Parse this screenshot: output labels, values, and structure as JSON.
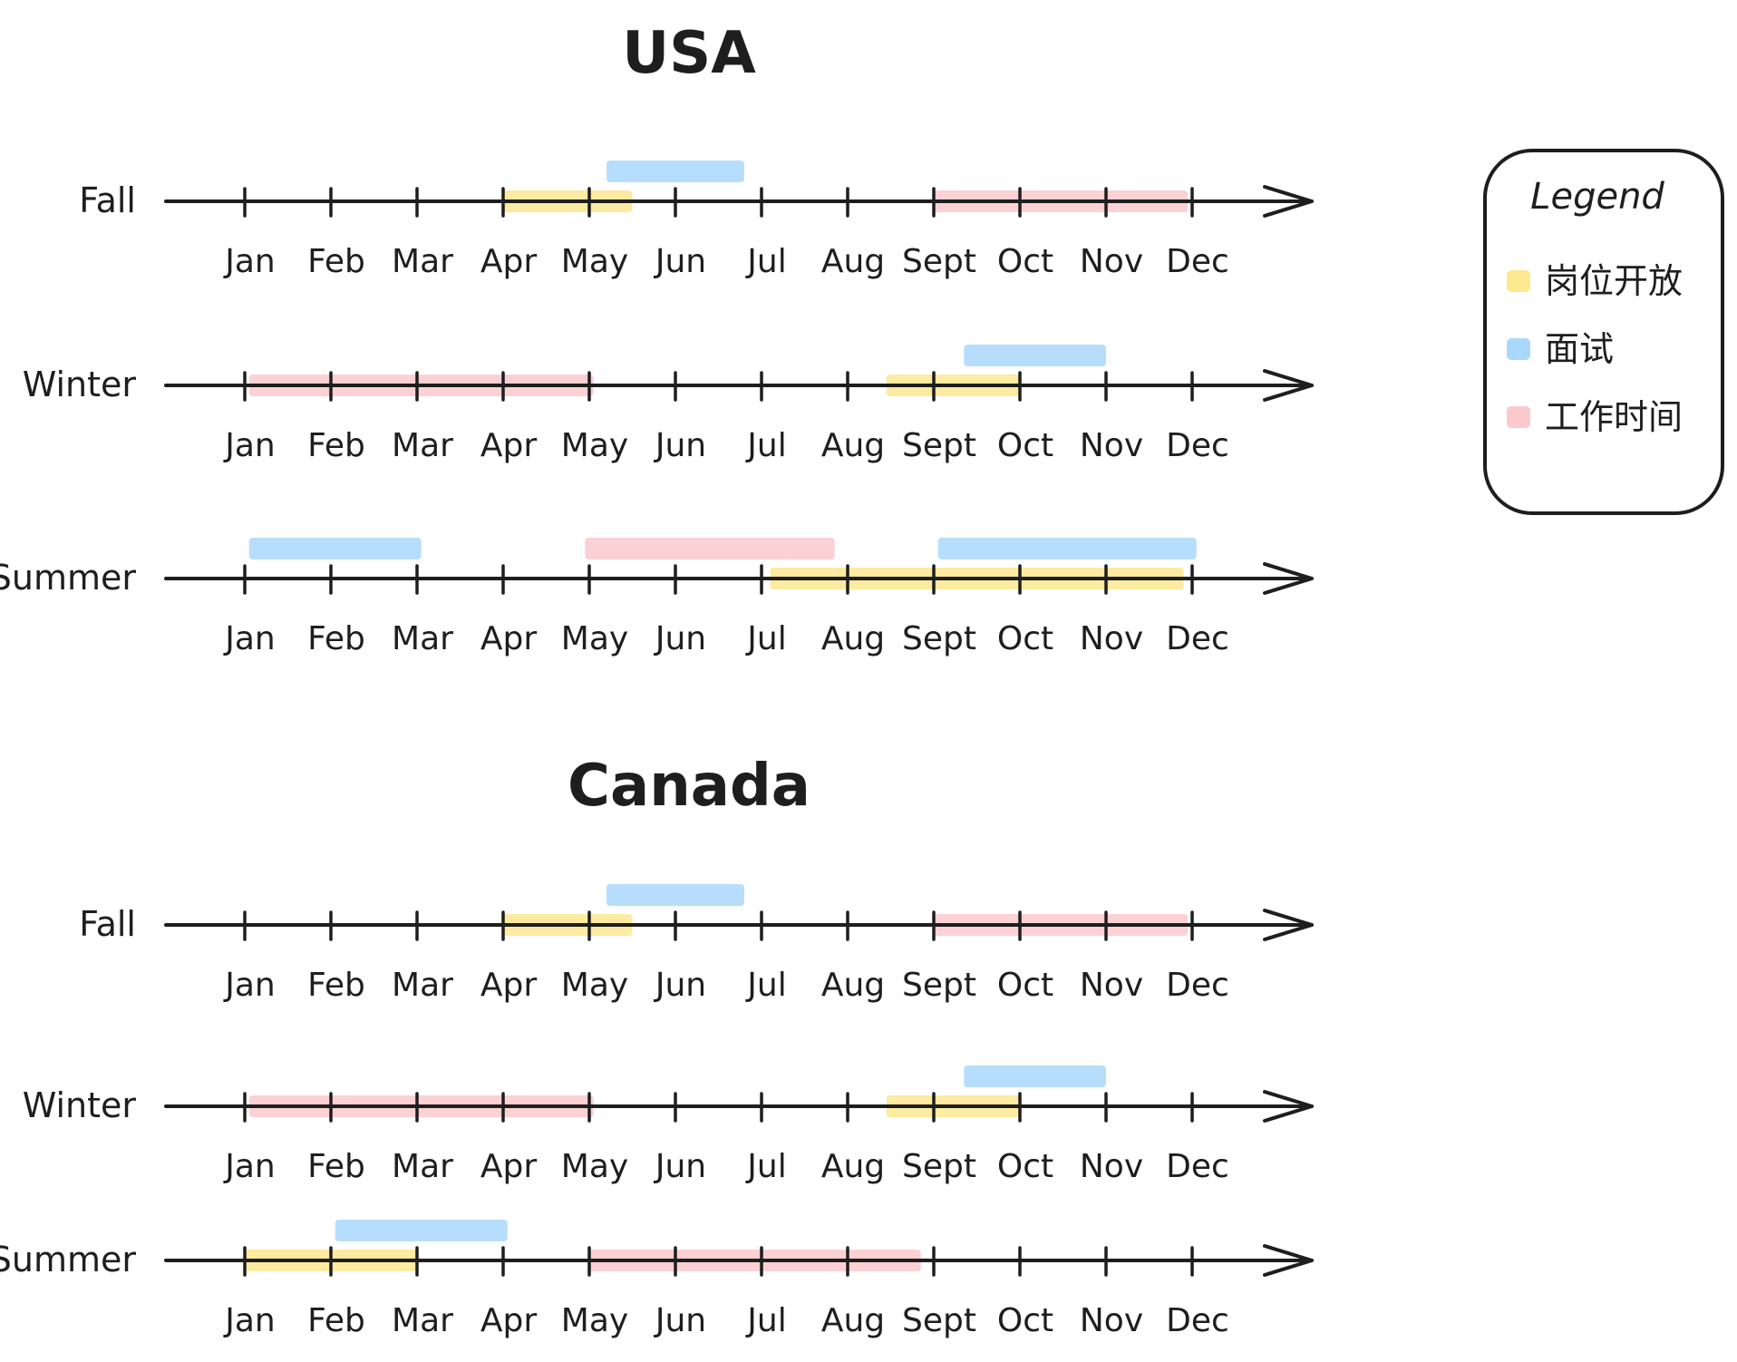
{
  "legend": {
    "title": "Legend",
    "items": [
      {
        "key": "open",
        "label": "岗位开放",
        "color": "#fce88f"
      },
      {
        "key": "interview",
        "label": "面试",
        "color": "#a9d8fb"
      },
      {
        "key": "work",
        "label": "工作时间",
        "color": "#fbc9cc"
      }
    ]
  },
  "months": [
    "Jan",
    "Feb",
    "Mar",
    "Apr",
    "May",
    "Jun",
    "Jul",
    "Aug",
    "Sept",
    "Oct",
    "Nov",
    "Dec"
  ],
  "sections": [
    {
      "title": "USA",
      "rows": [
        {
          "label": "Fall",
          "bars": [
            {
              "type": "open",
              "start": 4,
              "end": 5.5
            },
            {
              "type": "interview",
              "start": 5.2,
              "end": 6.8
            },
            {
              "type": "work",
              "start": 9,
              "end": 11.95
            }
          ]
        },
        {
          "label": "Winter",
          "bars": [
            {
              "type": "work",
              "start": 1.05,
              "end": 5.05
            },
            {
              "type": "open",
              "start": 8.45,
              "end": 10
            },
            {
              "type": "interview",
              "start": 9.35,
              "end": 11
            }
          ]
        },
        {
          "label": "Summer",
          "bars": [
            {
              "type": "interview",
              "start": 1.05,
              "end": 3.05
            },
            {
              "type": "work",
              "start": 4.95,
              "end": 7.85
            },
            {
              "type": "open",
              "start": 7.1,
              "end": 11.9
            },
            {
              "type": "interview",
              "start": 9.05,
              "end": 12.05
            }
          ]
        }
      ]
    },
    {
      "title": "Canada",
      "rows": [
        {
          "label": "Fall",
          "bars": [
            {
              "type": "open",
              "start": 4,
              "end": 5.5
            },
            {
              "type": "interview",
              "start": 5.2,
              "end": 6.8
            },
            {
              "type": "work",
              "start": 9,
              "end": 11.95
            }
          ]
        },
        {
          "label": "Winter",
          "bars": [
            {
              "type": "work",
              "start": 1.05,
              "end": 5.05
            },
            {
              "type": "open",
              "start": 8.45,
              "end": 10
            },
            {
              "type": "interview",
              "start": 9.35,
              "end": 11
            }
          ]
        },
        {
          "label": "Summer",
          "bars": [
            {
              "type": "open",
              "start": 1,
              "end": 3
            },
            {
              "type": "interview",
              "start": 2.05,
              "end": 4.05
            },
            {
              "type": "work",
              "start": 5,
              "end": 8.85
            }
          ]
        }
      ]
    }
  ]
}
